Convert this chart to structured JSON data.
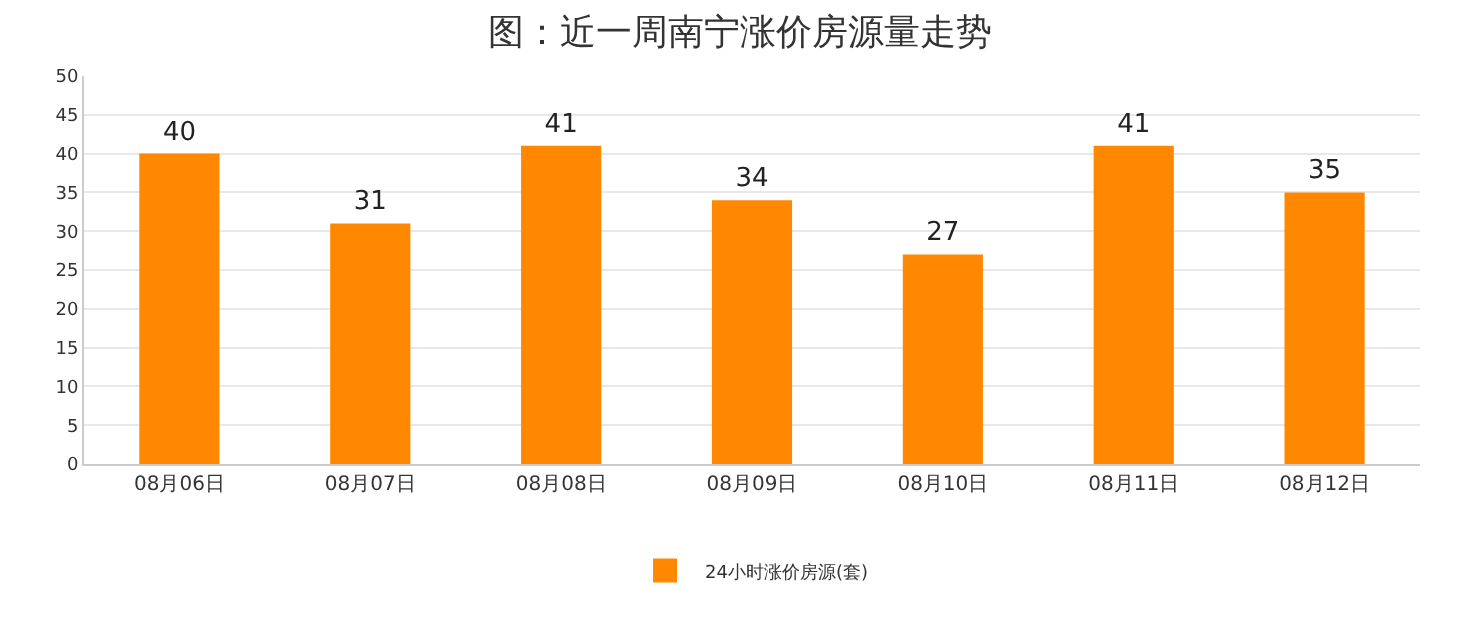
{
  "chart_data": {
    "type": "bar",
    "title": "图：近一周南宁涨价房源量走势",
    "categories": [
      "08月06日",
      "08月07日",
      "08月08日",
      "08月09日",
      "08月10日",
      "08月11日",
      "08月12日"
    ],
    "series": [
      {
        "name": "24小时涨价房源(套)",
        "color": "#ff8800",
        "values": [
          40,
          31,
          41,
          34,
          27,
          41,
          35
        ]
      }
    ],
    "ylim": [
      0,
      50
    ],
    "yticks": [
      0,
      5,
      10,
      15,
      20,
      25,
      30,
      35,
      40,
      45,
      50
    ],
    "grid": "y",
    "legend": "bottom",
    "data_labels": true
  }
}
